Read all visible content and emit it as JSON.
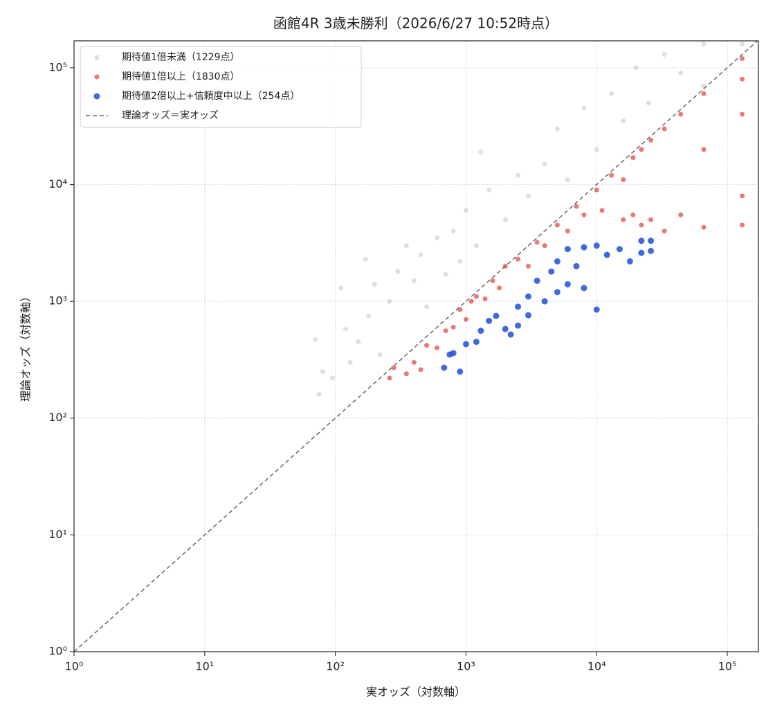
{
  "chart_data": {
    "type": "scatter",
    "title": "函館4R 3歳未勝利（2026/6/27 10:52時点）",
    "x_label": "実オッズ（対数軸）",
    "y_label": "理論オッズ（対数軸）",
    "x_log": true,
    "y_log": true,
    "grid": true,
    "legend": "upper-left",
    "xlim": [
      1,
      173000
    ],
    "ylim": [
      1,
      170000
    ],
    "xticks": [
      {
        "value": 1,
        "label": "10⁰"
      },
      {
        "value": 10,
        "label": "10¹"
      },
      {
        "value": 100,
        "label": "10²"
      },
      {
        "value": 1000,
        "label": "10³"
      },
      {
        "value": 10000,
        "label": "10⁴"
      },
      {
        "value": 100000,
        "label": "10⁵"
      }
    ],
    "yticks": [
      {
        "value": 1,
        "label": "10⁰"
      },
      {
        "value": 10,
        "label": "10¹"
      },
      {
        "value": 100,
        "label": "10²"
      },
      {
        "value": 1000,
        "label": "10³"
      },
      {
        "value": 10000,
        "label": "10⁴"
      },
      {
        "value": 100000,
        "label": "10⁵"
      }
    ],
    "series": [
      {
        "name": "期待値1倍未満（1229点）",
        "color": "#a9aeb6",
        "opacity": 0.4,
        "x": [
          70,
          75,
          80,
          95,
          110,
          120,
          130,
          150,
          170,
          180,
          200,
          220,
          260,
          300,
          350,
          400,
          450,
          500,
          600,
          700,
          800,
          900,
          1000,
          1200,
          1300,
          1500,
          2000,
          2500,
          3000,
          4000,
          5000,
          6000,
          8000,
          10000,
          13000,
          16000,
          20000,
          25000,
          33000,
          44000,
          66000,
          66000,
          130000
        ],
        "values": [
          470,
          160,
          250,
          220,
          1300,
          580,
          300,
          450,
          2300,
          750,
          1400,
          350,
          1000,
          1800,
          3000,
          1500,
          2500,
          900,
          3500,
          1700,
          4000,
          2200,
          6000,
          3000,
          19000,
          9000,
          5000,
          12000,
          8000,
          15000,
          30000,
          11000,
          45000,
          20000,
          60000,
          35000,
          100000,
          50000,
          130000,
          90000,
          160000,
          70000,
          160000
        ]
      },
      {
        "name": "期待値1倍以上（1830点）",
        "color": "#e03030",
        "opacity": 0.65,
        "x": [
          260,
          280,
          350,
          400,
          450,
          500,
          600,
          700,
          800,
          900,
          1000,
          1100,
          1200,
          1400,
          1600,
          1800,
          2000,
          2500,
          3000,
          3500,
          4000,
          5000,
          6000,
          7000,
          8000,
          10000,
          11000,
          13000,
          16000,
          16000,
          19000,
          19000,
          22000,
          22000,
          26000,
          26000,
          33000,
          33000,
          44000,
          44000,
          66000,
          66000,
          66000,
          130000,
          130000,
          130000,
          130000,
          130000
        ],
        "values": [
          220,
          270,
          240,
          300,
          260,
          420,
          400,
          560,
          600,
          850,
          700,
          1000,
          1100,
          1050,
          1500,
          1300,
          2000,
          2300,
          2000,
          3200,
          3000,
          4500,
          4000,
          6500,
          5500,
          9000,
          6000,
          12000,
          11000,
          5000,
          17000,
          5500,
          20000,
          4500,
          24000,
          5000,
          30000,
          4000,
          40000,
          5500,
          60000,
          4300,
          20000,
          120000,
          4500,
          40000,
          8000,
          80000
        ]
      },
      {
        "name": "期待値2倍以上+信頼度中以上（254点）",
        "color": "#1f4fd8",
        "opacity": 0.85,
        "x": [
          680,
          750,
          800,
          900,
          1000,
          1200,
          1300,
          1500,
          1700,
          2000,
          2200,
          2500,
          2500,
          3000,
          3000,
          3500,
          4000,
          4500,
          5000,
          5000,
          6000,
          6000,
          7000,
          8000,
          8000,
          10000,
          10000,
          12000,
          15000,
          18000,
          22000,
          22000,
          26000,
          26000
        ],
        "values": [
          270,
          350,
          360,
          250,
          430,
          450,
          560,
          680,
          750,
          580,
          520,
          620,
          900,
          1100,
          760,
          1500,
          1000,
          1800,
          1200,
          2200,
          2800,
          1400,
          2000,
          1300,
          2900,
          850,
          3000,
          2500,
          2800,
          2200,
          3300,
          2600,
          2700,
          3300
        ]
      },
      {
        "name": "理論オッズ＝実オッズ",
        "color": "#666666",
        "kind": "line",
        "dashed": true,
        "x": [
          1,
          173000
        ],
        "values": [
          1,
          173000
        ]
      }
    ]
  }
}
